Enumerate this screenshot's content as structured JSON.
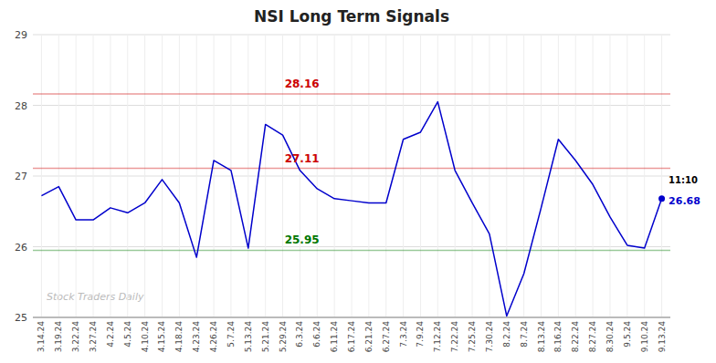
{
  "chart_data": {
    "type": "line",
    "title": "NSI Long Term Signals",
    "categories": [
      "3.14.24",
      "3.19.24",
      "3.22.24",
      "3.27.24",
      "4.2.24",
      "4.5.24",
      "4.10.24",
      "4.15.24",
      "4.18.24",
      "4.23.24",
      "4.26.24",
      "5.7.24",
      "5.13.24",
      "5.21.24",
      "5.29.24",
      "6.3.24",
      "6.6.24",
      "6.11.24",
      "6.17.24",
      "6.21.24",
      "6.27.24",
      "7.3.24",
      "7.9.24",
      "7.12.24",
      "7.22.24",
      "7.25.24",
      "7.30.24",
      "8.2.24",
      "8.7.24",
      "8.13.24",
      "8.16.24",
      "8.22.24",
      "8.27.24",
      "8.30.24",
      "9.5.24",
      "9.10.24",
      "9.13.24"
    ],
    "values": [
      26.72,
      26.85,
      26.38,
      26.38,
      26.55,
      26.48,
      26.62,
      26.95,
      26.62,
      25.85,
      27.22,
      27.08,
      25.98,
      27.73,
      27.58,
      27.08,
      26.82,
      26.68,
      26.65,
      26.62,
      26.62,
      27.52,
      27.62,
      28.05,
      27.08,
      26.62,
      26.18,
      25.02,
      25.62,
      26.55,
      27.52,
      27.22,
      26.88,
      26.42,
      26.02,
      25.98,
      26.68
    ],
    "color": "#0000cc",
    "hlines": [
      {
        "value": 28.16,
        "label": "28.16",
        "color": "#cc0000"
      },
      {
        "value": 27.11,
        "label": "27.11",
        "color": "#cc0000"
      },
      {
        "value": 25.95,
        "label": "25.95",
        "color": "#007700"
      }
    ],
    "last_point": {
      "label": "11:10",
      "value_label": "26.68"
    },
    "watermark": "Stock Traders Daily",
    "ylim": [
      25.0,
      29.0
    ],
    "yticks": [
      25,
      26,
      27,
      28,
      29
    ],
    "grid": true
  }
}
